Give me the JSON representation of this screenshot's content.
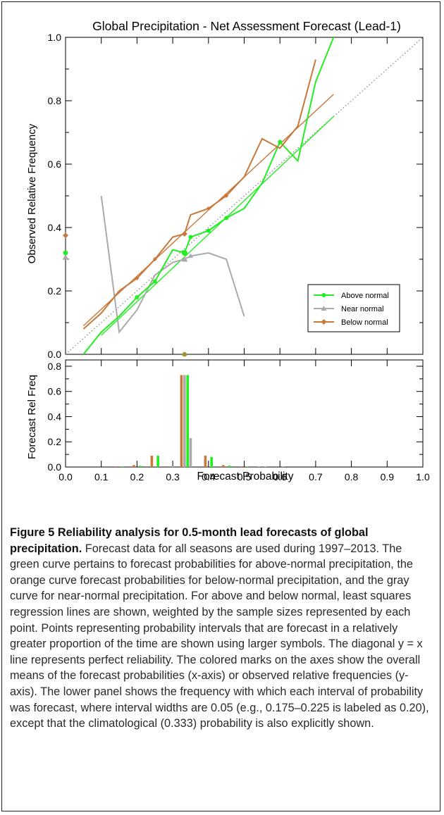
{
  "caption": {
    "label": "Figure 5 Reliability analysis for 0.5-month lead forecasts of global precipitation.",
    "text": "Forecast data for all seasons are used during 1997–2013. The green curve pertains to forecast probabilities for above-normal precipitation, the orange curve forecast probabilities for below-normal precipitation, and the gray curve for near-normal precipitation. For above and below normal, least squares regression lines are shown, weighted by the sample sizes represented by each point. Points representing probability intervals that are forecast in a relatively greater proportion of the time are shown using larger symbols. The diagonal y = x line represents perfect reliability. The colored marks on the axes show the overall means of the forecast probabilities (x-axis) or observed relative frequencies (y-axis). The lower panel shows the frequency with which each interval of probability was forecast, where interval widths are 0.05 (e.g., 0.175–0.225 is labeled as 0.20), except that the climatological (0.333) probability is also explicitly shown."
  },
  "colors": {
    "above": "#22ee22",
    "near": "#aaaaaa",
    "below": "#c8783a",
    "axis": "#000000"
  },
  "chart_data": [
    {
      "type": "line",
      "title": "Global Precipitation - Net Assessment Forecast (Lead-1)",
      "xlabel": "",
      "ylabel": "Observed Relative Frequency",
      "xlim": [
        0.0,
        1.0
      ],
      "ylim": [
        0.0,
        1.0
      ],
      "yticks": [
        "0.0",
        "0.2",
        "0.4",
        "0.6",
        "0.8",
        "1.0"
      ],
      "legend_position": "lower-right",
      "series": [
        {
          "name": "Above normal",
          "color": "#22ee22",
          "x": [
            0.05,
            0.1,
            0.15,
            0.2,
            0.25,
            0.3,
            0.333,
            0.35,
            0.4,
            0.45,
            0.5,
            0.55,
            0.6,
            0.65,
            0.7,
            0.75
          ],
          "y": [
            0.0,
            0.07,
            0.12,
            0.18,
            0.23,
            0.33,
            0.32,
            0.37,
            0.39,
            0.43,
            0.46,
            0.54,
            0.67,
            0.61,
            0.86,
            1.0
          ],
          "markers_at": [
            0.2,
            0.25,
            0.333,
            0.35,
            0.4,
            0.45,
            0.6
          ]
        },
        {
          "name": "Near normal",
          "color": "#aaaaaa",
          "x": [
            0.1,
            0.15,
            0.2,
            0.25,
            0.3,
            0.333,
            0.35,
            0.4,
            0.45,
            0.5
          ],
          "y": [
            0.5,
            0.07,
            0.14,
            0.25,
            0.29,
            0.3,
            0.31,
            0.32,
            0.3,
            0.12
          ],
          "markers_at": [
            0.333,
            0.35
          ]
        },
        {
          "name": "Below normal",
          "color": "#c8783a",
          "x": [
            0.05,
            0.1,
            0.15,
            0.2,
            0.25,
            0.3,
            0.333,
            0.35,
            0.4,
            0.45,
            0.5,
            0.55,
            0.6,
            0.65,
            0.7
          ],
          "y": [
            0.08,
            0.13,
            0.2,
            0.24,
            0.3,
            0.37,
            0.38,
            0.44,
            0.46,
            0.5,
            0.56,
            0.68,
            0.65,
            0.72,
            0.93
          ],
          "markers_at": [
            0.2,
            0.25,
            0.333,
            0.4,
            0.45
          ]
        }
      ],
      "regression_lines": [
        {
          "series": "Above normal",
          "color": "#22ee22",
          "x": [
            0.1,
            0.75
          ],
          "y": [
            0.06,
            0.75
          ]
        },
        {
          "series": "Below normal",
          "color": "#c8783a",
          "x": [
            0.05,
            0.75
          ],
          "y": [
            0.09,
            0.82
          ]
        }
      ],
      "reference_line": {
        "x": [
          0.0,
          1.0
        ],
        "y": [
          0.0,
          1.0
        ]
      },
      "axis_means": {
        "y_above": 0.32,
        "y_near": 0.305,
        "y_below": 0.375,
        "x_mean": 0.333
      }
    },
    {
      "type": "bar",
      "title": "",
      "xlabel": "Forecast Probability",
      "ylabel": "Forecast Rel Freq",
      "xlim": [
        0.0,
        1.0
      ],
      "ylim": [
        0.0,
        0.85
      ],
      "xticks": [
        "0.0",
        "0.1",
        "0.2",
        "0.3",
        "0.4",
        "0.5",
        "0.6",
        "0.7",
        "0.8",
        "0.9",
        "1.0"
      ],
      "yticks": [
        "0.0",
        "0.2",
        "0.4",
        "0.6",
        "0.8"
      ],
      "categories": [
        0.05,
        0.1,
        0.15,
        0.2,
        0.25,
        0.3,
        0.333,
        0.35,
        0.4,
        0.45,
        0.5,
        0.55,
        0.6,
        0.65,
        0.7,
        0.75
      ],
      "series": [
        {
          "name": "Below normal",
          "color": "#c8783a",
          "values": [
            0.0,
            0.0,
            0.005,
            0.015,
            0.09,
            0.0,
            0.73,
            0.0,
            0.09,
            0.015,
            0.005,
            0.002,
            0.0,
            0.0,
            0.0,
            0.0
          ]
        },
        {
          "name": "Near normal",
          "color": "#aaaaaa",
          "values": [
            0.0,
            0.0,
            0.0,
            0.0,
            0.0,
            0.01,
            0.73,
            0.23,
            0.0,
            0.0,
            0.0,
            0.0,
            0.0,
            0.0,
            0.0,
            0.0
          ]
        },
        {
          "name": "Above normal",
          "color": "#22ee22",
          "values": [
            0.0,
            0.0,
            0.005,
            0.01,
            0.09,
            0.0,
            0.73,
            0.0,
            0.08,
            0.012,
            0.005,
            0.002,
            0.002,
            0.0,
            0.0,
            0.0
          ]
        }
      ]
    }
  ]
}
